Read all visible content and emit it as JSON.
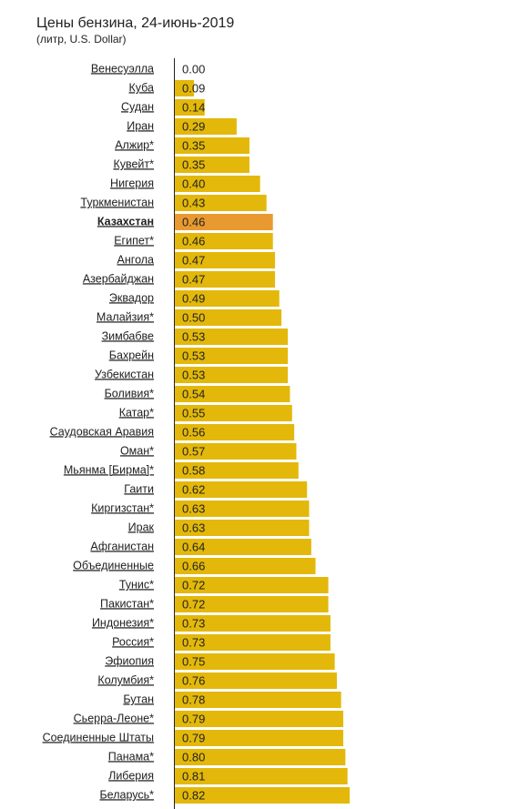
{
  "chart_data": {
    "type": "hbar",
    "title": "Цены бензина, 24-июнь-2019",
    "subtitle": "(литр, U.S. Dollar)",
    "categories": [
      "Венесуэлла",
      "Куба",
      "Судан",
      "Иран",
      "Алжир*",
      "Кувейт*",
      "Нигерия",
      "Туркменистан",
      "Казахстан",
      "Египет*",
      "Ангола",
      "Азербайджан",
      "Эквадор",
      "Малайзия*",
      "Зимбабве",
      "Бахрейн",
      "Узбекистан",
      "Боливия*",
      "Катар*",
      "Саудовская Аравия",
      "Оман*",
      "Мьянма [Бирма]*",
      "Гаити",
      "Киргизстан*",
      "Ирак",
      "Афганистан",
      "Объединенные",
      "Тунис*",
      "Пакистан*",
      "Индонезия*",
      "Россия*",
      "Эфиопия",
      "Колумбия*",
      "Бутан",
      "Сьерра-Леоне*",
      "Соединенные Штаты",
      "Панама*",
      "Либерия",
      "Беларусь*"
    ],
    "values": [
      0,
      0.09,
      0.14,
      0.29,
      0.35,
      0.35,
      0.4,
      0.43,
      0.46,
      0.46,
      0.47,
      0.47,
      0.49,
      0.5,
      0.53,
      0.53,
      0.53,
      0.54,
      0.55,
      0.56,
      0.57,
      0.58,
      0.62,
      0.63,
      0.63,
      0.64,
      0.66,
      0.72,
      0.72,
      0.73,
      0.73,
      0.75,
      0.76,
      0.78,
      0.79,
      0.79,
      0.8,
      0.81,
      0.82
    ],
    "value_labels": [
      "0.00",
      "0.09",
      "0.14",
      "0.29",
      "0.35",
      "0.35",
      "0.40",
      "0.43",
      "0.46",
      "0.46",
      "0.47",
      "0.47",
      "0.49",
      "0.50",
      "0.53",
      "0.53",
      "0.53",
      "0.54",
      "0.55",
      "0.56",
      "0.57",
      "0.58",
      "0.62",
      "0.63",
      "0.63",
      "0.64",
      "0.66",
      "0.72",
      "0.72",
      "0.73",
      "0.73",
      "0.75",
      "0.76",
      "0.78",
      "0.79",
      "0.79",
      "0.80",
      "0.81",
      "0.82"
    ],
    "color": "#e3b80a",
    "highlight": "Казахстан",
    "highlight_color": "#e89a30"
  }
}
